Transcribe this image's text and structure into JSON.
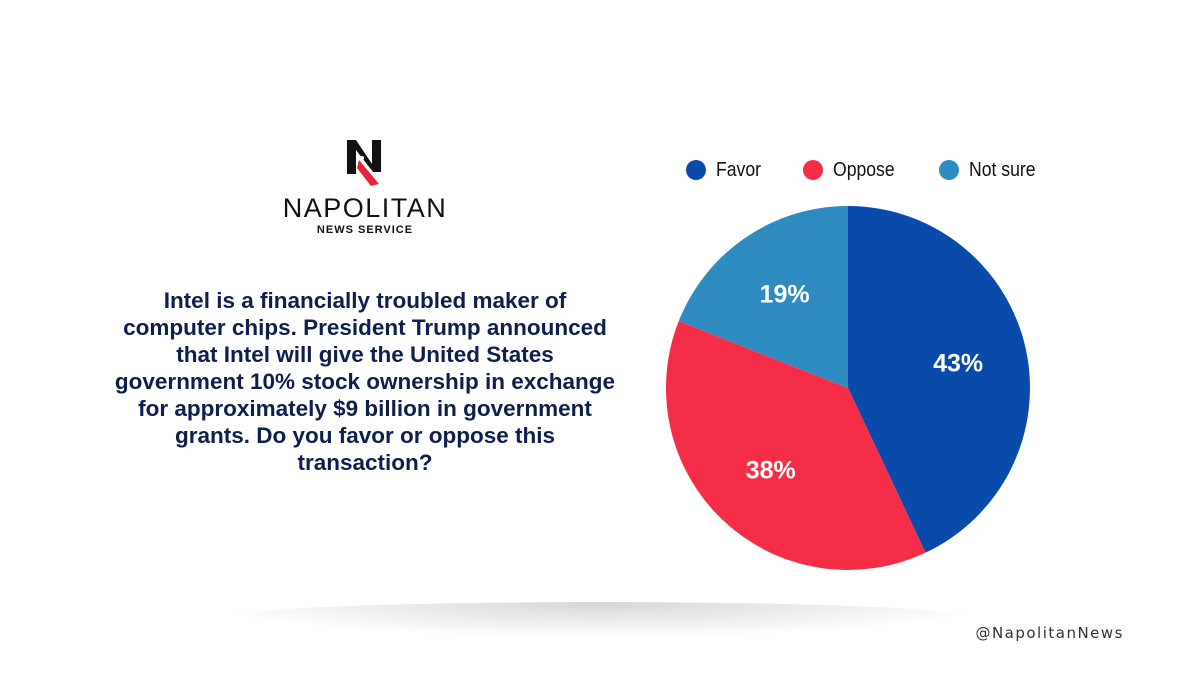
{
  "logo": {
    "name": "NAPOLITAN",
    "subtitle": "NEWS SERVICE"
  },
  "question": "Intel is a financially troubled maker of computer chips. President Trump announced that Intel will give the United States government 10% stock ownership in exchange for approximately $9 billion in government grants. Do you favor or oppose this transaction?",
  "social_handle": "@NapolitanNews",
  "colors": {
    "favor": "#0a4aaa",
    "oppose": "#f52d46",
    "not_sure": "#2e8bbf",
    "question_text": "#0f1f4d"
  },
  "chart_data": {
    "type": "pie",
    "title": "",
    "legend_position": "top",
    "categories": [
      "Favor",
      "Oppose",
      "Not sure"
    ],
    "values": [
      43,
      38,
      19
    ],
    "labels": [
      "43%",
      "38%",
      "19%"
    ],
    "colors": [
      "#0a4aaa",
      "#f52d46",
      "#2e8bbf"
    ]
  }
}
